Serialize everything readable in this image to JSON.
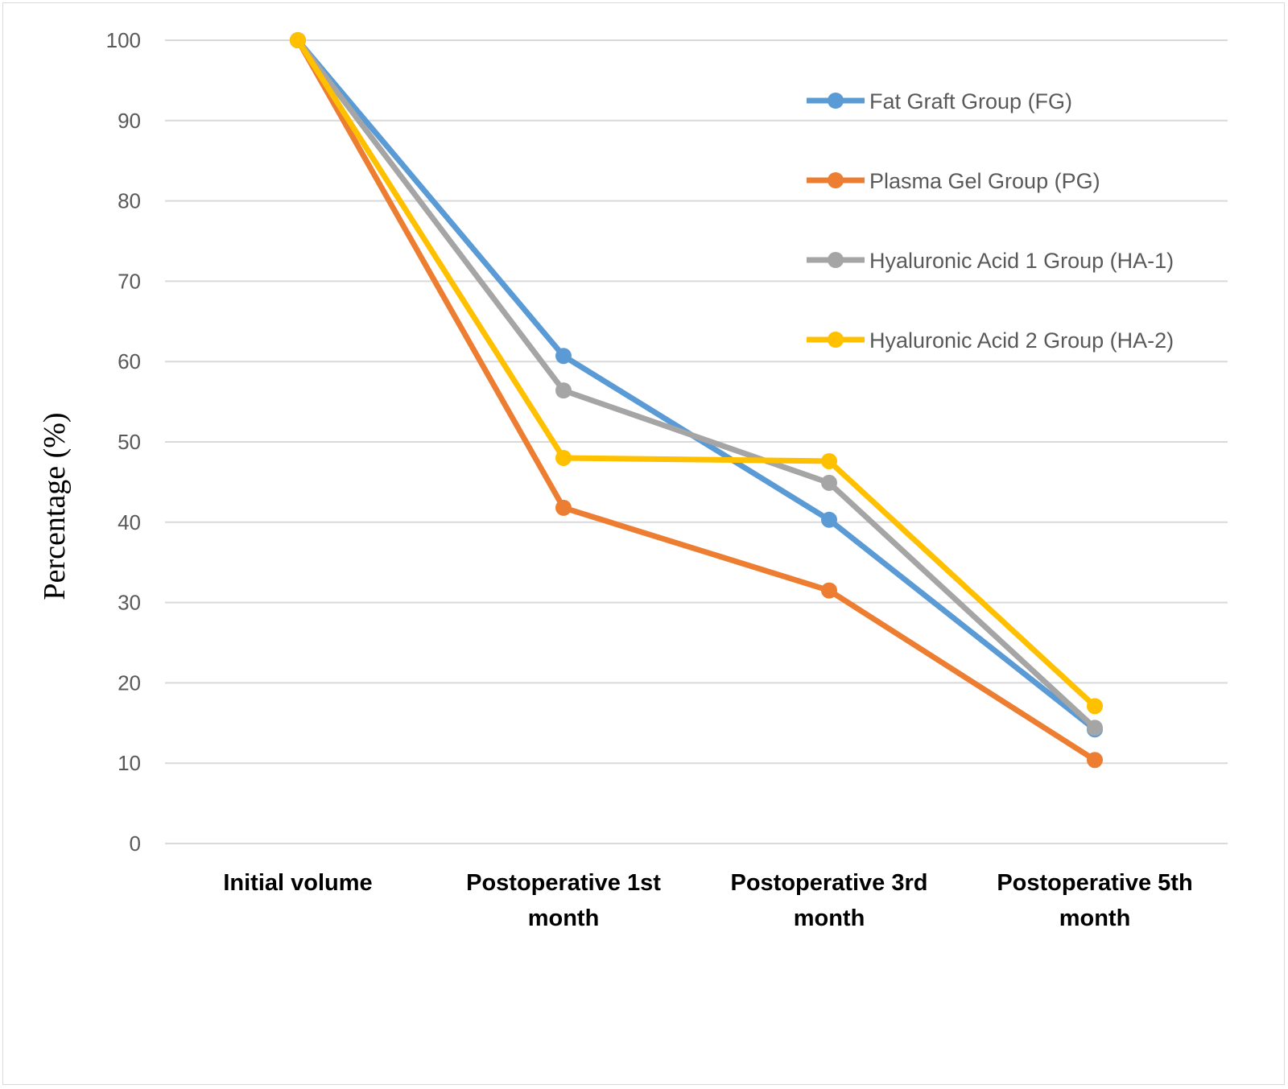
{
  "chart_data": {
    "type": "line",
    "categories": [
      [
        "Initial volume"
      ],
      [
        "Postoperative 1st",
        "month"
      ],
      [
        "Postoperative 3rd",
        "month"
      ],
      [
        "Postoperative 5th",
        "month"
      ]
    ],
    "ylabel": "Percentage  (%)",
    "xlabel": "",
    "title": "",
    "ylim": [
      0,
      100
    ],
    "yticks": [
      0,
      10,
      20,
      30,
      40,
      50,
      60,
      70,
      80,
      90,
      100
    ],
    "grid": true,
    "legend_position": "top-right",
    "series": [
      {
        "name": "Fat Graft Group (FG)",
        "color": "#5b9bd5",
        "values": [
          100,
          60.7,
          40.3,
          14.2
        ]
      },
      {
        "name": "Plasma Gel Group (PG)",
        "color": "#ed7d31",
        "values": [
          100,
          41.8,
          31.5,
          10.4
        ]
      },
      {
        "name": "Hyaluronic Acid 1 Group (HA-1)",
        "color": "#a5a5a5",
        "values": [
          100,
          56.4,
          44.9,
          14.4
        ]
      },
      {
        "name": "Hyaluronic Acid 2 Group (HA-2)",
        "color": "#ffc000",
        "values": [
          100,
          48.0,
          47.6,
          17.1
        ]
      }
    ]
  }
}
